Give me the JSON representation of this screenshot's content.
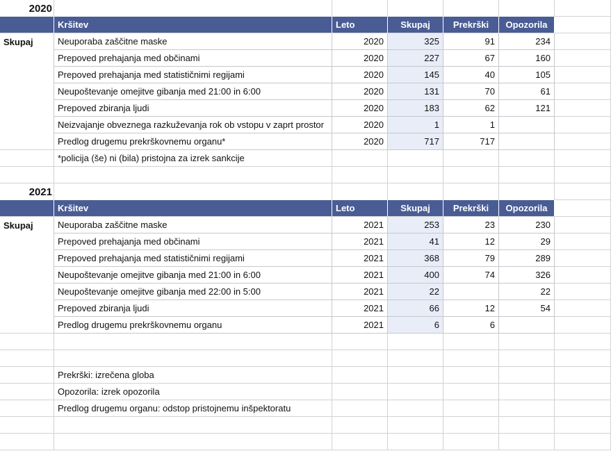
{
  "sheet": {
    "sections": [
      {
        "title": "2020",
        "row_header": "Skupaj",
        "headers": {
          "krsitev": "Kršitev",
          "leto": "Leto",
          "skupaj": "Skupaj",
          "prekrski": "Prekrški",
          "opozorila": "Opozorila"
        },
        "rows": [
          {
            "krsitev": "Neuporaba zaščitne maske",
            "leto": "2020",
            "skupaj": "325",
            "prekrski": "91",
            "opozorila": "234"
          },
          {
            "krsitev": "Prepoved prehajanja med občinami",
            "leto": "2020",
            "skupaj": "227",
            "prekrski": "67",
            "opozorila": "160"
          },
          {
            "krsitev": "Prepoved prehajanja med statističnimi regijami",
            "leto": "2020",
            "skupaj": "145",
            "prekrski": "40",
            "opozorila": "105"
          },
          {
            "krsitev": "Neupoštevanje omejitve gibanja med 21:00 in 6:00",
            "leto": "2020",
            "skupaj": "131",
            "prekrski": "70",
            "opozorila": "61"
          },
          {
            "krsitev": "Prepoved zbiranja ljudi",
            "leto": "2020",
            "skupaj": "183",
            "prekrski": "62",
            "opozorila": "121"
          },
          {
            "krsitev": "Neizvajanje obveznega razkuževanja rok ob vstopu v zaprt prostor",
            "leto": "2020",
            "skupaj": "1",
            "prekrski": "1",
            "opozorila": ""
          },
          {
            "krsitev": "Predlog drugemu prekrškovnemu organu*",
            "leto": "2020",
            "skupaj": "717",
            "prekrski": "717",
            "opozorila": ""
          }
        ],
        "footnote": "*policija (še) ni (bila) pristojna za izrek sankcije"
      },
      {
        "title": "2021",
        "row_header": "Skupaj",
        "headers": {
          "krsitev": "Kršitev",
          "leto": "Leto",
          "skupaj": "Skupaj",
          "prekrski": "Prekrški",
          "opozorila": "Opozorila"
        },
        "rows": [
          {
            "krsitev": "Neuporaba zaščitne maske",
            "leto": "2021",
            "skupaj": "253",
            "prekrski": "23",
            "opozorila": "230"
          },
          {
            "krsitev": "Prepoved prehajanja med občinami",
            "leto": "2021",
            "skupaj": "41",
            "prekrski": "12",
            "opozorila": "29"
          },
          {
            "krsitev": "Prepoved prehajanja med statističnimi regijami",
            "leto": "2021",
            "skupaj": "368",
            "prekrski": "79",
            "opozorila": "289"
          },
          {
            "krsitev": "Neupoštevanje omejitve gibanja med 21:00 in 6:00",
            "leto": "2021",
            "skupaj": "400",
            "prekrski": "74",
            "opozorila": "326"
          },
          {
            "krsitev": "Neupoštevanje omejitve gibanja med 22:00 in 5:00",
            "leto": "2021",
            "skupaj": "22",
            "prekrski": "",
            "opozorila": "22"
          },
          {
            "krsitev": "Prepoved zbiranja ljudi",
            "leto": "2021",
            "skupaj": "66",
            "prekrski": "12",
            "opozorila": "54"
          },
          {
            "krsitev": "Predlog drugemu prekrškovnemu organu",
            "leto": "2021",
            "skupaj": "6",
            "prekrski": "6",
            "opozorila": ""
          }
        ],
        "footnote": ""
      }
    ],
    "notes": [
      "Prekrški: izrečena globa",
      "Opozorila: izrek opozorila",
      "Predlog drugemu organu: odstop pristojnemu inšpektoratu"
    ]
  },
  "colors": {
    "header_bg": "#4a5c94",
    "header_text": "#ffffff",
    "skupaj_column_bg": "#e9edf8"
  }
}
